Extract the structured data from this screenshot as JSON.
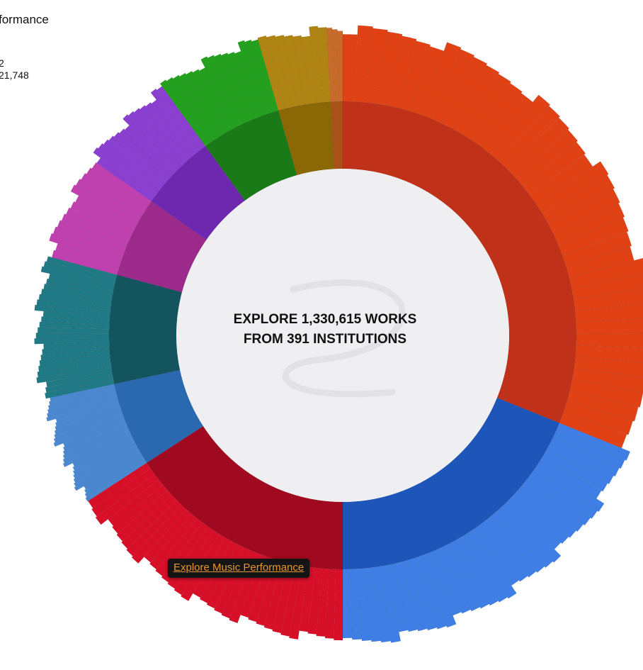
{
  "info": {
    "title": "formance",
    "line1": "2",
    "line2": "21,748"
  },
  "center": {
    "line1": "EXPLORE 1,330,615 WORKS",
    "line2": "FROM 391 INSTITUTIONS"
  },
  "tooltip": {
    "link": "Explore Music Performance"
  },
  "chart_data": {
    "type": "sunburst",
    "center_values": {
      "works": 1330615,
      "institutions": 391
    },
    "start_angle_deg": 0,
    "groups": [
      {
        "color": "#c0311a",
        "outer_color": "#e04216",
        "start_deg": 0,
        "end_deg": 112,
        "subsegments": 40,
        "outer_extent": 1.0
      },
      {
        "color": "#1e55b8",
        "outer_color": "#3f7ee4",
        "start_deg": 112,
        "end_deg": 180,
        "subsegments": 38,
        "outer_extent": 1.0
      },
      {
        "color": "#a00a20",
        "outer_color": "#d80f28",
        "start_deg": 180,
        "end_deg": 237,
        "subsegments": 34,
        "outer_extent": 0.95
      },
      {
        "color": "#2a69b0",
        "outer_color": "#4a88d2",
        "start_deg": 237,
        "end_deg": 258,
        "subsegments": 30,
        "outer_extent": 0.97
      },
      {
        "color": "#13545e",
        "outer_color": "#207a86",
        "start_deg": 258,
        "end_deg": 285,
        "subsegments": 26,
        "outer_extent": 0.98
      },
      {
        "color": "#9c2a8a",
        "outer_color": "#c040b0",
        "start_deg": 285,
        "end_deg": 305,
        "subsegments": 14,
        "outer_extent": 0.97
      },
      {
        "color": "#6e28b0",
        "outer_color": "#8a3fd0",
        "start_deg": 305,
        "end_deg": 324,
        "subsegments": 16,
        "outer_extent": 0.98
      },
      {
        "color": "#1a7a18",
        "outer_color": "#22a01e",
        "start_deg": 324,
        "end_deg": 344,
        "subsegments": 16,
        "outer_extent": 1.0
      },
      {
        "color": "#8a6806",
        "outer_color": "#b08412",
        "start_deg": 344,
        "end_deg": 357,
        "subsegments": 8,
        "outer_extent": 1.0
      },
      {
        "color": "#a8521a",
        "outer_color": "#c86a2a",
        "start_deg": 357,
        "end_deg": 360,
        "subsegments": 3,
        "outer_extent": 1.0
      }
    ]
  }
}
